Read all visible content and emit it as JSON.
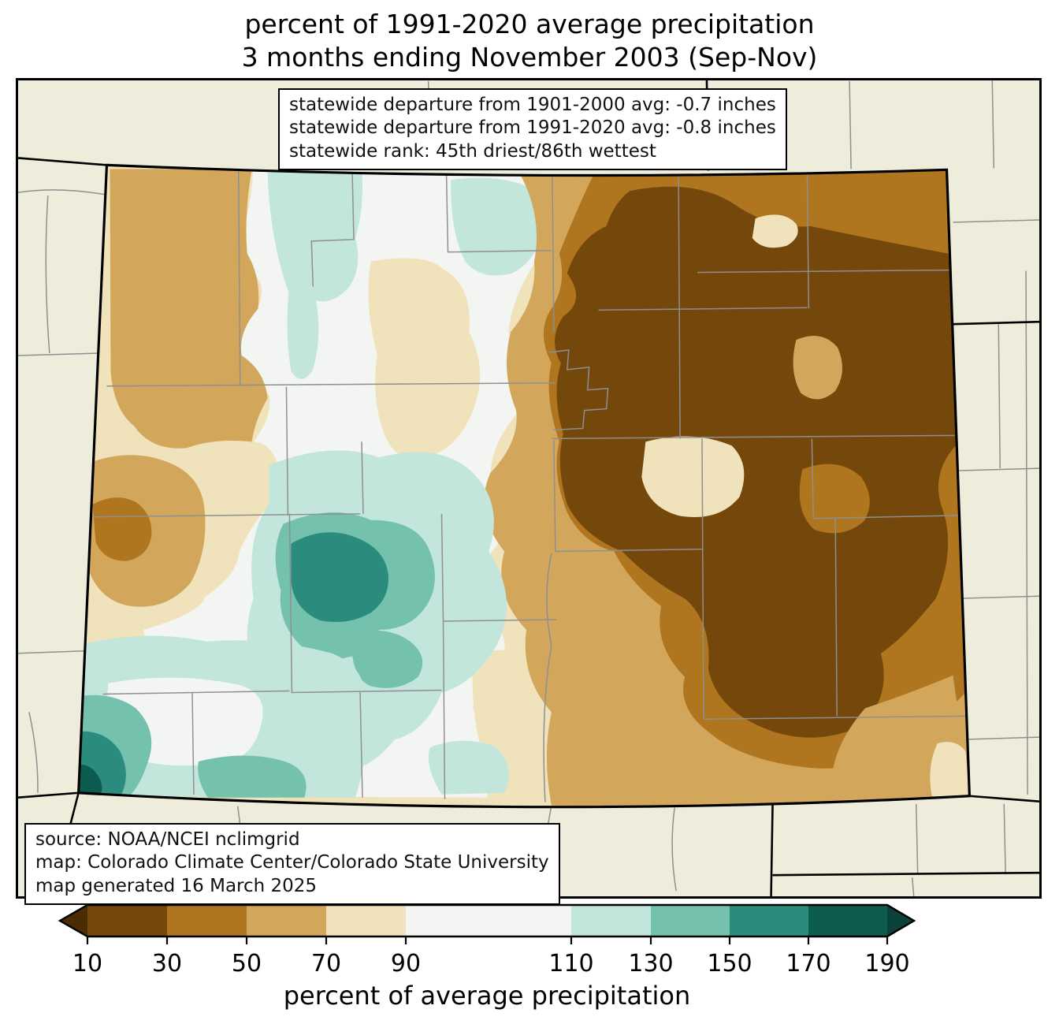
{
  "title": {
    "line1": "percent of 1991-2020 average precipitation",
    "line2": "3 months ending November 2003 (Sep-Nov)"
  },
  "stats_box": {
    "lines": [
      "statewide departure from 1901-2000 avg: -0.7 inches",
      "statewide departure from 1991-2020 avg: -0.8 inches",
      "statewide rank: 45th driest/86th wettest"
    ]
  },
  "source_box": {
    "lines": [
      "source: NOAA/NCEI nclimgrid",
      "map: Colorado Climate Center/Colorado State University",
      "map generated 16 March 2025"
    ]
  },
  "colorbar": {
    "label": "percent of average precipitation",
    "ticks": [
      "10",
      "30",
      "50",
      "70",
      "90",
      "110",
      "130",
      "150",
      "170",
      "190"
    ],
    "arrow_left_color": "#4a2c05",
    "arrow_right_color": "#0a423a",
    "segment_colors": [
      "#74470a",
      "#b0751f",
      "#d2a75c",
      "#f0e2ba",
      "#f3f5f2",
      "#c2e6dc",
      "#74c1ad",
      "#2b8c7e",
      "#0d5c50"
    ],
    "outline_color": "#000000"
  },
  "map": {
    "region": "Colorado",
    "palette": {
      "p10_30": "#74470a",
      "p30_50": "#b0751f",
      "p50_70": "#d2a75c",
      "p70_90": "#f0e2ba",
      "p90_110": "#f3f5f2",
      "p110_130": "#c2e6dc",
      "p130_150": "#74c1ad",
      "p150_170": "#2b8c7e",
      "p170_190": "#0d5c50",
      "outside": "#eeeddc",
      "state_line": "#000000",
      "county_line": "#8f8f8f"
    }
  }
}
